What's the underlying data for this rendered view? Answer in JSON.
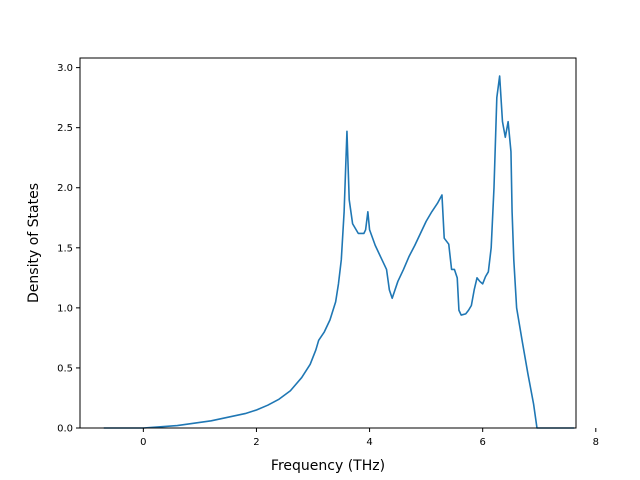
{
  "chart_data": {
    "type": "line",
    "title": "",
    "xlabel": "Frequency (THz)",
    "ylabel": "Density of States",
    "xlim": [
      -1.12,
      7.65
    ],
    "ylim": [
      0,
      3.08
    ],
    "x_ticks": [
      0,
      2,
      4,
      6,
      8
    ],
    "y_ticks": [
      0.0,
      0.5,
      1.0,
      1.5,
      2.0,
      2.5,
      3.0
    ],
    "x_tick_labels": [
      "0",
      "2",
      "4",
      "6",
      "8"
    ],
    "y_tick_labels": [
      "0.0",
      "0.5",
      "1.0",
      "1.5",
      "2.0",
      "2.5",
      "3.0"
    ],
    "grid": false,
    "legend": "none",
    "series": [
      {
        "color": "#1f77b4",
        "x": [
          -0.7,
          0.0,
          0.3,
          0.6,
          0.9,
          1.2,
          1.5,
          1.8,
          2.0,
          2.2,
          2.4,
          2.6,
          2.8,
          2.95,
          3.05,
          3.1,
          3.2,
          3.3,
          3.4,
          3.45,
          3.5,
          3.55,
          3.6,
          3.64,
          3.7,
          3.8,
          3.9,
          3.93,
          3.97,
          4.0,
          4.1,
          4.2,
          4.3,
          4.35,
          4.4,
          4.5,
          4.6,
          4.7,
          4.8,
          4.9,
          5.0,
          5.1,
          5.2,
          5.28,
          5.32,
          5.4,
          5.45,
          5.5,
          5.55,
          5.58,
          5.62,
          5.7,
          5.75,
          5.8,
          5.85,
          5.9,
          5.95,
          6.0,
          6.05,
          6.1,
          6.15,
          6.2,
          6.25,
          6.3,
          6.35,
          6.4,
          6.45,
          6.5,
          6.52,
          6.55,
          6.6,
          6.7,
          6.8,
          6.9,
          6.96,
          7.0,
          7.62
        ],
        "y": [
          0.0,
          0.0,
          0.01,
          0.02,
          0.04,
          0.06,
          0.09,
          0.12,
          0.15,
          0.19,
          0.24,
          0.31,
          0.42,
          0.53,
          0.65,
          0.73,
          0.8,
          0.9,
          1.05,
          1.2,
          1.4,
          1.8,
          2.47,
          1.9,
          1.7,
          1.62,
          1.62,
          1.65,
          1.8,
          1.65,
          1.52,
          1.42,
          1.32,
          1.15,
          1.08,
          1.22,
          1.32,
          1.43,
          1.52,
          1.62,
          1.72,
          1.8,
          1.87,
          1.94,
          1.58,
          1.53,
          1.32,
          1.32,
          1.25,
          0.98,
          0.94,
          0.95,
          0.98,
          1.02,
          1.15,
          1.25,
          1.22,
          1.2,
          1.26,
          1.3,
          1.5,
          2.0,
          2.75,
          2.93,
          2.55,
          2.42,
          2.55,
          2.3,
          1.8,
          1.4,
          1.0,
          0.72,
          0.45,
          0.2,
          0.0,
          0.0,
          0.0
        ]
      }
    ]
  }
}
